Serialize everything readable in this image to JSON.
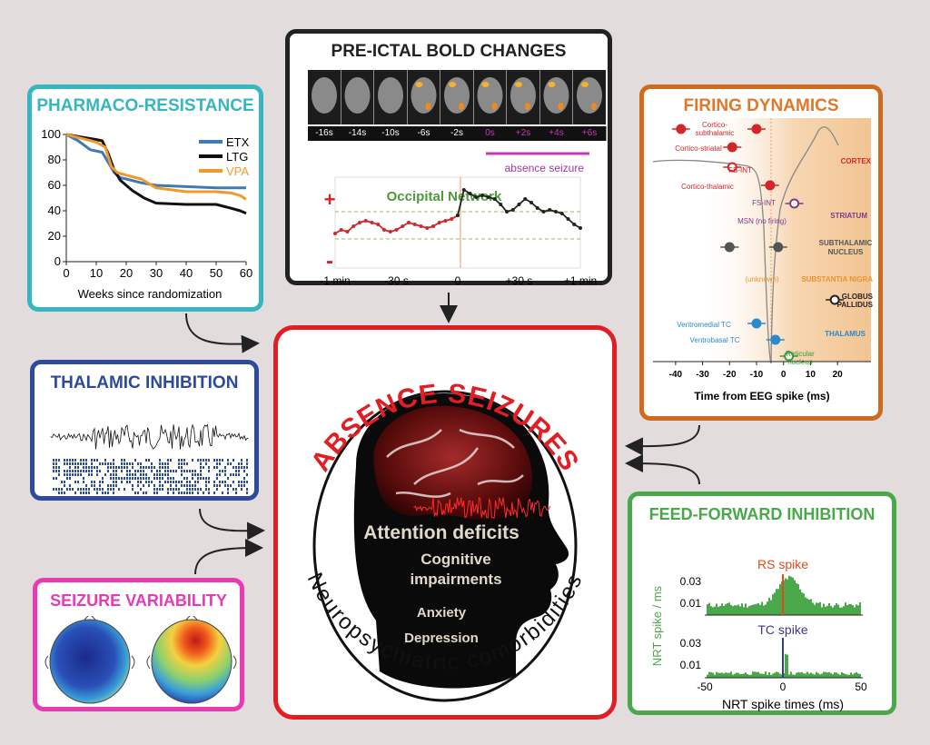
{
  "center": {
    "title": "ABSENCE SEIZURES",
    "subtitle": "Neuropsychiatric comorbidities",
    "items": [
      "Attention deficits",
      "Cognitive",
      "impairments",
      "Anxiety",
      "Depression"
    ],
    "border_color": "#e21d23"
  },
  "pharmaco": {
    "title": "PHARMACO-RESISTANCE",
    "border_color": "#35b6c0",
    "xlabel": "Weeks since randomization",
    "legend": [
      "ETX",
      "LTG",
      "VPA"
    ]
  },
  "bold": {
    "title": "PRE-ICTAL BOLD CHANGES",
    "border_color": "#222222",
    "frames": [
      "-16s",
      "-14s",
      "-10s",
      "-6s",
      "-2s",
      "0s",
      "+2s",
      "+4s",
      "+6s"
    ],
    "seizure_label": "absence seizure",
    "network_label": "Occipital Network",
    "plus": "+",
    "minus": "-",
    "xticks": [
      "-1 min",
      "-30 s",
      "0",
      "+30 s",
      "+1 min"
    ]
  },
  "firing": {
    "title": "FIRING DYNAMICS",
    "border_color": "#cf6a1f",
    "xlabel": "Time from EEG spike (ms)",
    "xticks": [
      "-40",
      "-30",
      "-20",
      "-10",
      "0",
      "10",
      "20"
    ],
    "regions": [
      "CORTEX",
      "STRIATUM",
      "SUBTHALAMIC",
      "NUCLEUS",
      "SUBSTANTIA NIGRA",
      "GLOBUS",
      "PALLIDUS",
      "THALAMUS"
    ],
    "labels": [
      "Cortico-",
      "subthalamic",
      "Cortico-striatal",
      "FS-INT",
      "Cortico-thalamic",
      "FS-INT",
      "MSN (no firing)",
      "(unknown)",
      "Ventromedial TC",
      "Ventrobasal TC",
      "Reticular",
      "nucleus"
    ]
  },
  "thalamic": {
    "title": "THALAMIC INHIBITION",
    "border_color": "#2c4b9b"
  },
  "variability": {
    "title": "SEIZURE VARIABILITY",
    "border_color": "#e83ab3"
  },
  "feedforward": {
    "title": "FEED-FORWARD INHIBITION",
    "border_color": "#4aa84a",
    "ylabel": "NRT spike / ms",
    "xlabel": "NRT spike times (ms)",
    "rs_label": "RS spike",
    "tc_label": "TC spike",
    "yticks": [
      "0.03",
      "0.01"
    ],
    "xticks": [
      "-50",
      "0",
      "50"
    ]
  },
  "chart_data": [
    {
      "type": "line",
      "xlabel": "Weeks since randomization",
      "ylabel": "",
      "xlim": [
        0,
        60
      ],
      "ylim": [
        0,
        100
      ],
      "xticks": [
        0,
        10,
        20,
        30,
        40,
        50,
        60
      ],
      "yticks": [
        0,
        20,
        40,
        60,
        80,
        100
      ],
      "legend_position": "top-right",
      "series": [
        {
          "name": "ETX",
          "color": "#3e7bb6",
          "x": [
            0,
            4,
            8,
            12,
            14,
            16,
            18,
            20,
            25,
            30,
            40,
            50,
            60
          ],
          "y": [
            100,
            95,
            88,
            86,
            78,
            70,
            66,
            65,
            62,
            60,
            59,
            58,
            58
          ]
        },
        {
          "name": "LTG",
          "color": "#111111",
          "x": [
            0,
            5,
            10,
            12,
            14,
            16,
            18,
            22,
            26,
            30,
            40,
            50,
            55,
            58,
            60
          ],
          "y": [
            100,
            98,
            96,
            95,
            85,
            72,
            64,
            56,
            50,
            46,
            45,
            45,
            42,
            40,
            38
          ]
        },
        {
          "name": "VPA",
          "color": "#f09a2e",
          "x": [
            0,
            5,
            10,
            13,
            15,
            17,
            20,
            25,
            30,
            40,
            50,
            55,
            58,
            60
          ],
          "y": [
            100,
            97,
            94,
            90,
            75,
            70,
            68,
            65,
            58,
            55,
            55,
            54,
            52,
            49
          ]
        }
      ]
    },
    {
      "type": "line",
      "title": "Occipital Network",
      "xticks": [
        "-1 min",
        "-30 s",
        "0",
        "+30 s",
        "+1 min"
      ],
      "xlim": [
        -60,
        60
      ],
      "series": [
        {
          "name": "",
          "color": "#d2262a",
          "x": [
            -60,
            -57,
            -54,
            -51,
            -48,
            -45,
            -42,
            -39,
            -36,
            -33,
            -30,
            -27,
            -24,
            -21,
            -18,
            -15,
            -12,
            -9,
            -6,
            -3,
            0
          ],
          "y": [
            -0.3,
            -0.2,
            -0.25,
            -0.1,
            0,
            0.05,
            0,
            -0.05,
            -0.2,
            -0.25,
            -0.2,
            -0.1,
            0,
            -0.05,
            -0.1,
            -0.15,
            -0.1,
            0,
            0.05,
            0.1,
            0.2
          ]
        },
        {
          "name": "",
          "color": "#222222",
          "x": [
            0,
            3,
            6,
            9,
            12,
            15,
            18,
            21,
            24,
            27,
            30,
            33,
            36,
            39,
            42,
            45,
            48,
            51,
            54,
            57,
            60
          ],
          "y": [
            0.2,
            0.9,
            0.8,
            0.7,
            0.75,
            0.7,
            0.65,
            0.5,
            0.3,
            0.35,
            0.5,
            0.65,
            0.55,
            0.4,
            0.3,
            0.35,
            0.3,
            0.25,
            0.1,
            -0.05,
            -0.15
          ]
        }
      ]
    },
    {
      "type": "scatter",
      "xlabel": "Time from EEG spike (ms)",
      "xlim": [
        -45,
        25
      ],
      "xticks": [
        -40,
        -30,
        -20,
        -10,
        0,
        10,
        20
      ],
      "points": [
        {
          "x": -38,
          "region": "CORTEX"
        },
        {
          "x": -10,
          "region": "CORTEX"
        },
        {
          "x": -19,
          "region": "CORTEX"
        },
        {
          "x": -19,
          "region": "CORTEX"
        },
        {
          "x": -5,
          "region": "CORTEX"
        },
        {
          "x": 4,
          "region": "STRIATUM"
        },
        {
          "x": -20,
          "region": "SUBTHALAMIC NUCLEUS"
        },
        {
          "x": -2,
          "region": "SUBTHALAMIC NUCLEUS"
        },
        {
          "x": 19,
          "region": "GLOBUS PALLIDUS"
        },
        {
          "x": -10,
          "region": "THALAMUS"
        },
        {
          "x": -3,
          "region": "THALAMUS"
        },
        {
          "x": 2,
          "region": "THALAMUS"
        }
      ]
    },
    {
      "type": "bar",
      "title": "RS spike",
      "ylabel": "NRT spike / ms",
      "xlim": [
        -50,
        50
      ],
      "yticks": [
        0.01,
        0.03
      ],
      "xticks": [
        -50,
        0,
        50
      ]
    },
    {
      "type": "bar",
      "title": "TC spike",
      "xlabel": "NRT spike times (ms)",
      "xlim": [
        -50,
        50
      ],
      "yticks": [
        0.01,
        0.03
      ],
      "xticks": [
        -50,
        0,
        50
      ]
    }
  ]
}
